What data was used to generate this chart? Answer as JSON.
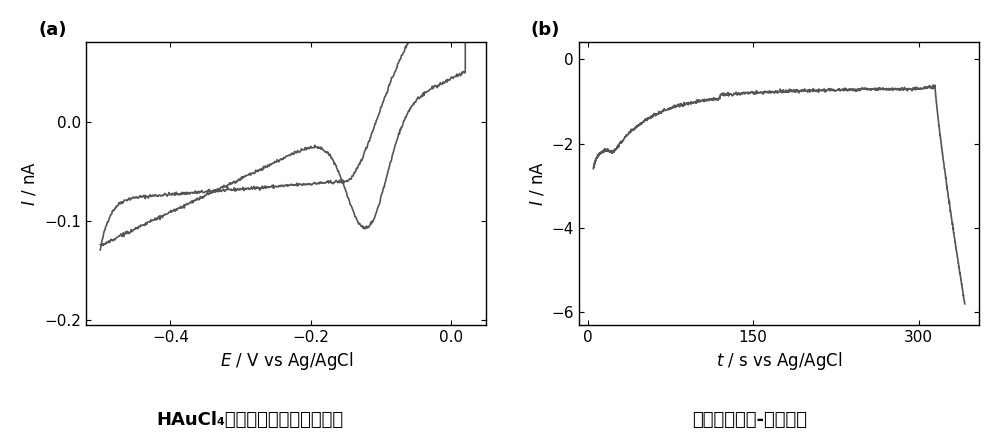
{
  "panel_a": {
    "label": "(a)",
    "xlabel_italic": "E",
    "xlabel_rest": " / V vs Ag/AgCl",
    "ylabel_italic": "I",
    "ylabel_rest": " / nA",
    "xlim": [
      -0.52,
      0.05
    ],
    "ylim": [
      -0.205,
      0.08
    ],
    "xticks": [
      -0.4,
      -0.2,
      0.0
    ],
    "yticks": [
      -0.2,
      -0.1,
      0.0
    ],
    "line_color": "#555555",
    "caption": "HAuCl₄在碳模板上的循环伏安图"
  },
  "panel_b": {
    "label": "(b)",
    "xlabel_italic": "t",
    "xlabel_rest": " / s vs Ag/AgCl",
    "ylabel_italic": "I",
    "ylabel_rest": " / nA",
    "xlim": [
      -8,
      355
    ],
    "ylim": [
      -6.3,
      0.4
    ],
    "xticks": [
      0,
      150,
      300
    ],
    "yticks": [
      0,
      -2,
      -4,
      -6
    ],
    "line_color": "#555555",
    "caption": "电镰过程电流-时间曲线"
  },
  "background_color": "#ffffff",
  "line_width": 1.2,
  "font_size_label": 12,
  "font_size_tick": 11,
  "font_size_panel": 13,
  "font_size_caption": 13
}
